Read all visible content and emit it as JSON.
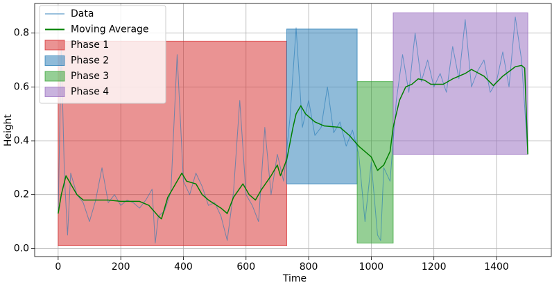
{
  "chart_data": {
    "type": "line",
    "xlabel": "Time",
    "ylabel": "Height",
    "xlim": [
      -75,
      1575
    ],
    "ylim": [
      -0.03,
      0.91
    ],
    "xticks": [
      0,
      200,
      400,
      600,
      800,
      1000,
      1200,
      1400
    ],
    "yticks": [
      {
        "value": 0,
        "label": "0.0"
      },
      0.2,
      0.4,
      0.6,
      0.8
    ],
    "grid": true,
    "legend": "upper left",
    "series": [
      {
        "name": "Data",
        "color": "#1f77b4",
        "x": [
          0,
          10,
          20,
          30,
          40,
          60,
          80,
          100,
          120,
          140,
          160,
          180,
          200,
          220,
          240,
          260,
          280,
          300,
          310,
          320,
          340,
          360,
          380,
          400,
          420,
          440,
          460,
          480,
          500,
          520,
          540,
          560,
          580,
          600,
          620,
          640,
          660,
          680,
          700,
          720,
          740,
          760,
          780,
          800,
          820,
          840,
          860,
          880,
          900,
          920,
          940,
          960,
          980,
          1000,
          1020,
          1030,
          1040,
          1060,
          1080,
          1100,
          1120,
          1140,
          1160,
          1180,
          1200,
          1220,
          1240,
          1260,
          1280,
          1300,
          1320,
          1340,
          1360,
          1380,
          1400,
          1420,
          1440,
          1460,
          1480,
          1500
        ],
        "values": [
          0.13,
          0.75,
          0.27,
          0.05,
          0.28,
          0.2,
          0.17,
          0.1,
          0.18,
          0.3,
          0.17,
          0.2,
          0.16,
          0.18,
          0.17,
          0.15,
          0.18,
          0.22,
          0.02,
          0.12,
          0.14,
          0.21,
          0.72,
          0.25,
          0.2,
          0.28,
          0.23,
          0.16,
          0.17,
          0.12,
          0.03,
          0.21,
          0.55,
          0.2,
          0.16,
          0.1,
          0.45,
          0.2,
          0.35,
          0.25,
          0.48,
          0.82,
          0.45,
          0.55,
          0.42,
          0.45,
          0.6,
          0.43,
          0.47,
          0.38,
          0.44,
          0.35,
          0.1,
          0.32,
          0.05,
          0.03,
          0.3,
          0.25,
          0.55,
          0.72,
          0.58,
          0.8,
          0.62,
          0.7,
          0.6,
          0.65,
          0.58,
          0.75,
          0.63,
          0.85,
          0.6,
          0.66,
          0.7,
          0.58,
          0.62,
          0.73,
          0.6,
          0.86,
          0.7,
          0.35
        ]
      },
      {
        "name": "Moving Average",
        "color": "#008000",
        "x": [
          0,
          10,
          25,
          40,
          60,
          80,
          120,
          160,
          200,
          260,
          290,
          320,
          330,
          350,
          380,
          395,
          410,
          440,
          460,
          480,
          520,
          540,
          560,
          590,
          610,
          630,
          650,
          680,
          700,
          710,
          730,
          750,
          760,
          775,
          790,
          820,
          850,
          900,
          930,
          960,
          1000,
          1020,
          1040,
          1060,
          1070,
          1090,
          1110,
          1130,
          1150,
          1170,
          1190,
          1230,
          1260,
          1300,
          1320,
          1360,
          1390,
          1420,
          1460,
          1480,
          1490,
          1500
        ],
        "values": [
          0.13,
          0.2,
          0.27,
          0.24,
          0.2,
          0.18,
          0.18,
          0.18,
          0.175,
          0.175,
          0.16,
          0.12,
          0.11,
          0.19,
          0.25,
          0.28,
          0.25,
          0.24,
          0.2,
          0.18,
          0.15,
          0.13,
          0.19,
          0.24,
          0.2,
          0.18,
          0.22,
          0.27,
          0.31,
          0.27,
          0.33,
          0.45,
          0.5,
          0.53,
          0.5,
          0.47,
          0.455,
          0.45,
          0.42,
          0.38,
          0.34,
          0.29,
          0.31,
          0.36,
          0.45,
          0.55,
          0.6,
          0.61,
          0.63,
          0.625,
          0.61,
          0.61,
          0.63,
          0.65,
          0.665,
          0.64,
          0.605,
          0.64,
          0.675,
          0.68,
          0.67,
          0.35
        ]
      }
    ],
    "phases": [
      {
        "name": "Phase 1",
        "color": "#d62728",
        "xrange": [
          0,
          730
        ],
        "yrange": [
          0.01,
          0.77
        ]
      },
      {
        "name": "Phase 2",
        "color": "#1f77b4",
        "xrange": [
          730,
          955
        ],
        "yrange": [
          0.24,
          0.815
        ]
      },
      {
        "name": "Phase 3",
        "color": "#2ca02c",
        "xrange": [
          955,
          1070
        ],
        "yrange": [
          0.02,
          0.62
        ]
      },
      {
        "name": "Phase 4",
        "color": "#9467bd",
        "xrange": [
          1070,
          1500
        ],
        "yrange": [
          0.35,
          0.875
        ]
      }
    ]
  }
}
